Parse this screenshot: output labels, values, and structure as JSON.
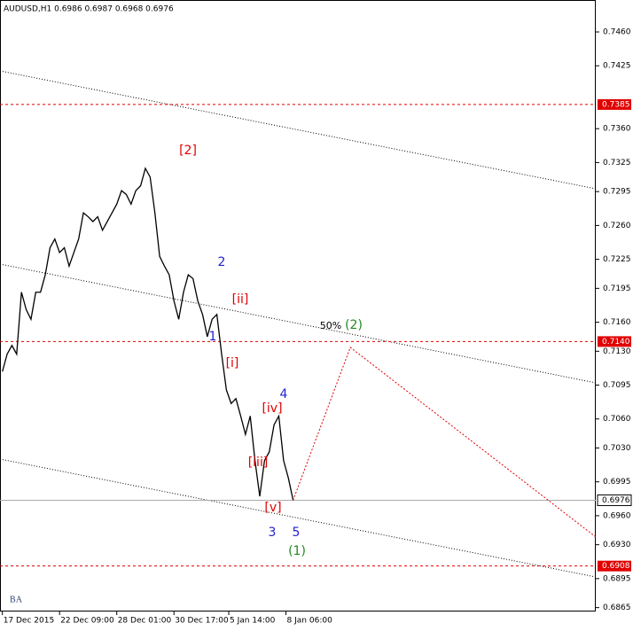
{
  "chart_data": {
    "type": "line",
    "title": "AUDUSD,H1  0.6986 0.6987 0.6968 0.6976",
    "series": [
      {
        "name": "AUDUSD",
        "color": "#000000",
        "values": [
          0.7109,
          0.7127,
          0.7136,
          0.7127,
          0.7191,
          0.7173,
          0.7163,
          0.7191,
          0.7191,
          0.7209,
          0.7237,
          0.7246,
          0.7232,
          0.7237,
          0.7218,
          0.7232,
          0.7246,
          0.7273,
          0.7269,
          0.7264,
          0.7269,
          0.7255,
          0.7264,
          0.7273,
          0.7282,
          0.7296,
          0.7292,
          0.7282,
          0.7296,
          0.7301,
          0.7319,
          0.731,
          0.7273,
          0.7228,
          0.7218,
          0.7209,
          0.7182,
          0.7163,
          0.7191,
          0.7209,
          0.7205,
          0.7182,
          0.7168,
          0.7145,
          0.7163,
          0.7168,
          0.7127,
          0.709,
          0.7076,
          0.7081,
          0.7063,
          0.7044,
          0.7063,
          0.7017,
          0.698,
          0.7017,
          0.7026,
          0.7054,
          0.7063,
          0.7017,
          0.6999,
          0.6976
        ]
      }
    ],
    "forecast": {
      "color": "#e00000",
      "x": [
        61,
        73,
        124.5
      ],
      "values": [
        0.6976,
        0.7134,
        0.6938
      ]
    },
    "levels": [
      {
        "value": 0.7385,
        "label": "0.7385"
      },
      {
        "value": 0.714,
        "label": "0.7140"
      },
      {
        "value": 0.6908,
        "label": "0.6908"
      }
    ],
    "level_color": "#e00000",
    "last_price": {
      "value": 0.6976,
      "label": "0.6976"
    },
    "xlim": [
      -0.5,
      124.5
    ],
    "xticks": [
      {
        "value": 0,
        "label": "17 Dec 2015"
      },
      {
        "value": 12,
        "label": "22 Dec 09:00"
      },
      {
        "value": 24,
        "label": "28 Dec 01:00"
      },
      {
        "value": 36,
        "label": "30 Dec 17:00"
      },
      {
        "value": 47.5,
        "label": "5 Jan 14:00"
      },
      {
        "value": 59.5,
        "label": "8 Jan 06:00"
      }
    ],
    "ylim": [
      0.6861,
      0.7493
    ],
    "yticks": [
      {
        "value": 0.746,
        "label": "0.7460"
      },
      {
        "value": 0.7425,
        "label": "0.7425"
      },
      {
        "value": 0.736,
        "label": "0.7360"
      },
      {
        "value": 0.7325,
        "label": "0.7325"
      },
      {
        "value": 0.7295,
        "label": "0.7295"
      },
      {
        "value": 0.726,
        "label": "0.7260"
      },
      {
        "value": 0.7225,
        "label": "0.7225"
      },
      {
        "value": 0.7195,
        "label": "0.7195"
      },
      {
        "value": 0.716,
        "label": "0.7160"
      },
      {
        "value": 0.713,
        "label": "0.7130"
      },
      {
        "value": 0.7095,
        "label": "0.7095"
      },
      {
        "value": 0.706,
        "label": "0.7060"
      },
      {
        "value": 0.703,
        "label": "0.7030"
      },
      {
        "value": 0.6995,
        "label": "0.6995"
      },
      {
        "value": 0.696,
        "label": "0.6960"
      },
      {
        "value": 0.693,
        "label": "0.6930"
      },
      {
        "value": 0.6895,
        "label": "0.6895"
      },
      {
        "value": 0.6865,
        "label": "0.6865"
      }
    ],
    "annotations": [
      {
        "text": "[2]",
        "color": "#e00000"
      },
      {
        "text": "2",
        "color": "#2222cc"
      },
      {
        "text": "[ii]",
        "color": "#e00000"
      },
      {
        "text": "1",
        "color": "#2222cc"
      },
      {
        "text": "[i]",
        "color": "#e00000"
      },
      {
        "text": "4",
        "color": "#2222cc"
      },
      {
        "text": "[iv]",
        "color": "#e00000"
      },
      {
        "text": "[iii]",
        "color": "#e00000"
      },
      {
        "text": "[v]",
        "color": "#e00000"
      },
      {
        "text": "3",
        "color": "#2222cc"
      },
      {
        "text": "5",
        "color": "#2222cc"
      },
      {
        "text": "(1)",
        "color": "#228822"
      },
      {
        "text": "50%",
        "color": "#000000"
      },
      {
        "text": "(2)",
        "color": "#228822"
      },
      {
        "text": "BA",
        "color": "#334477"
      }
    ]
  }
}
